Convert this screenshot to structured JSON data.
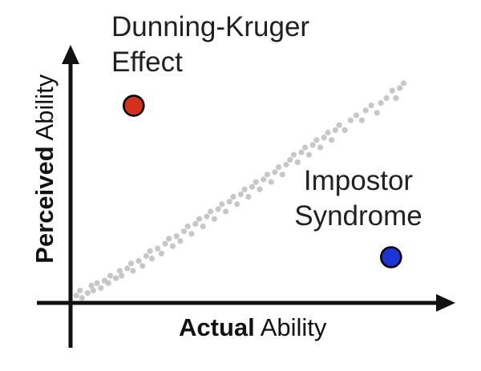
{
  "figure": {
    "background": "#ffffff"
  },
  "chart_data": {
    "type": "scatter",
    "title": "",
    "xlabel": "Actual Ability",
    "ylabel": "Perceived Ability",
    "xlabel_bold": "Actual",
    "xlabel_rest": " Ability",
    "ylabel_bold": "Perceived",
    "ylabel_rest": " Ability",
    "xlim": [
      0,
      100
    ],
    "ylim": [
      0,
      100
    ],
    "grid": false,
    "legend": "none",
    "axis_color": "#111111",
    "annotations": [
      {
        "id": "dunning-kruger",
        "line1": "Dunning-Kruger",
        "line2": "Effect",
        "x": 17,
        "y": 80
      },
      {
        "id": "impostor-syndrome",
        "line1": "Impostor",
        "line2": "Syndrome",
        "x": 85,
        "y": 18.5
      }
    ],
    "series": [
      {
        "name": "self-assessment-trend",
        "marker_name": "trend-dot",
        "color": "#c7c7c7",
        "stroke": "",
        "stroke_width": 0,
        "marker_radius": 3.6,
        "points": [
          [
            1.5,
            3
          ],
          [
            2.5,
            5
          ],
          [
            3,
            2
          ],
          [
            4.5,
            4
          ],
          [
            5.5,
            7
          ],
          [
            6,
            5
          ],
          [
            7,
            8
          ],
          [
            8,
            6
          ],
          [
            9,
            9
          ],
          [
            10,
            8
          ],
          [
            10.5,
            11
          ],
          [
            12,
            10
          ],
          [
            13,
            13
          ],
          [
            13.5,
            11
          ],
          [
            15,
            14
          ],
          [
            16,
            16
          ],
          [
            16.5,
            13
          ],
          [
            18,
            17
          ],
          [
            19,
            15
          ],
          [
            20,
            19
          ],
          [
            21,
            21
          ],
          [
            21.5,
            18
          ],
          [
            23,
            22
          ],
          [
            24,
            20
          ],
          [
            25,
            24
          ],
          [
            26,
            26
          ],
          [
            27,
            23
          ],
          [
            28,
            27
          ],
          [
            29,
            25
          ],
          [
            30,
            29
          ],
          [
            31,
            31
          ],
          [
            32,
            28
          ],
          [
            33,
            32
          ],
          [
            34,
            34
          ],
          [
            35,
            31
          ],
          [
            36,
            35
          ],
          [
            37,
            37
          ],
          [
            38,
            34
          ],
          [
            39,
            38
          ],
          [
            40,
            40
          ],
          [
            41,
            37
          ],
          [
            42,
            41
          ],
          [
            43,
            43
          ],
          [
            44,
            40
          ],
          [
            45,
            44
          ],
          [
            46,
            46
          ],
          [
            47,
            43
          ],
          [
            48,
            47
          ],
          [
            49,
            49
          ],
          [
            50,
            46
          ],
          [
            51,
            50
          ],
          [
            52,
            52
          ],
          [
            53,
            49
          ],
          [
            54,
            53
          ],
          [
            55,
            55
          ],
          [
            56,
            52
          ],
          [
            57,
            56
          ],
          [
            58,
            58
          ],
          [
            59,
            60
          ],
          [
            60,
            57
          ],
          [
            61,
            61
          ],
          [
            62,
            63
          ],
          [
            63,
            60
          ],
          [
            64,
            64
          ],
          [
            65,
            66
          ],
          [
            66,
            63
          ],
          [
            67,
            67
          ],
          [
            68,
            69
          ],
          [
            69,
            66
          ],
          [
            70,
            70
          ],
          [
            71,
            72
          ],
          [
            72.5,
            70
          ],
          [
            74,
            74
          ],
          [
            75.5,
            76
          ],
          [
            77,
            74
          ],
          [
            78,
            78
          ],
          [
            79.5,
            80
          ],
          [
            81,
            77
          ],
          [
            82,
            81
          ],
          [
            83.5,
            83
          ],
          [
            85,
            86
          ],
          [
            86,
            83
          ],
          [
            87,
            87
          ],
          [
            88,
            89
          ]
        ]
      },
      {
        "name": "Dunning-Kruger Effect",
        "marker_name": "dunning-kruger-point",
        "color": "#d6301d",
        "stroke": "#000000",
        "stroke_width": 2.6,
        "marker_radius": 12.5,
        "points": [
          [
            16.7,
            79.9
          ]
        ]
      },
      {
        "name": "Impostor Syndrome",
        "marker_name": "impostor-syndrome-point",
        "color": "#1b35d8",
        "stroke": "#000000",
        "stroke_width": 2.6,
        "marker_radius": 12.5,
        "points": [
          [
            84.7,
            18.5
          ]
        ]
      }
    ]
  }
}
